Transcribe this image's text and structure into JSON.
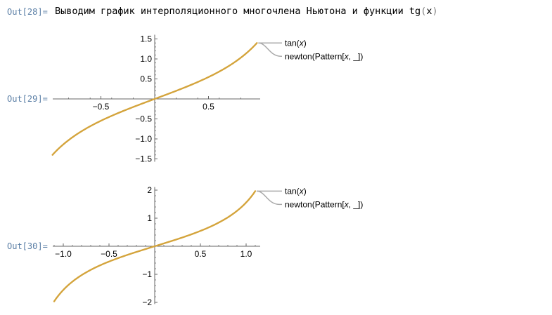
{
  "out28": {
    "label": "Out[28]=",
    "text": "Выводим график интерполяционного многочлена Ньютона и функции ",
    "func": "tg",
    "open": "(",
    "arg": "x",
    "close": ")"
  },
  "out29": {
    "label": "Out[29]="
  },
  "out30": {
    "label": "Out[30]="
  },
  "colors": {
    "curve": "#d4a43c",
    "leader": "#aaaaaa",
    "label": "#5b7fa6"
  },
  "chart_data": [
    {
      "type": "line",
      "function": "tan",
      "xlim": [
        -0.95,
        0.95
      ],
      "ylim": [
        -1.5,
        1.5
      ],
      "xticks": [
        {
          "v": -0.5,
          "label": "−0.5"
        },
        {
          "v": 0.5,
          "label": "0.5"
        }
      ],
      "yticks": [
        {
          "v": -1.5,
          "label": "−1.5"
        },
        {
          "v": -1.0,
          "label": "−1.0"
        },
        {
          "v": -0.5,
          "label": "−0.5"
        },
        {
          "v": 0.5,
          "label": "0.5"
        },
        {
          "v": 1.0,
          "label": "1.0"
        },
        {
          "v": 1.5,
          "label": "1.5"
        }
      ],
      "series": [
        {
          "name": "tan(x)",
          "x": [
            -0.95,
            -0.75,
            -0.5,
            -0.25,
            0,
            0.25,
            0.5,
            0.75,
            0.95
          ],
          "y": [
            -1.4,
            -0.93,
            -0.55,
            -0.26,
            0,
            0.26,
            0.55,
            0.93,
            1.4
          ]
        },
        {
          "name": "newton(Pattern[x, _])",
          "x": [
            -0.95,
            -0.75,
            -0.5,
            -0.25,
            0,
            0.25,
            0.5,
            0.75,
            0.95
          ],
          "y": [
            -1.4,
            -0.93,
            -0.55,
            -0.26,
            0,
            0.26,
            0.55,
            0.93,
            1.4
          ]
        }
      ],
      "legend": [
        {
          "prefix": "tan(",
          "italic": "x",
          "suffix": ")"
        },
        {
          "prefix": "newton(Pattern[",
          "italic": "x",
          "suffix": ", _])"
        }
      ]
    },
    {
      "type": "line",
      "function": "tan",
      "xlim": [
        -1.1,
        1.1
      ],
      "ylim": [
        -1.96,
        1.96
      ],
      "xticks": [
        {
          "v": -1.0,
          "label": "−1.0"
        },
        {
          "v": -0.5,
          "label": "−0.5"
        },
        {
          "v": 0.5,
          "label": "0.5"
        },
        {
          "v": 1.0,
          "label": "1.0"
        }
      ],
      "yticks": [
        {
          "v": -2,
          "label": "−2"
        },
        {
          "v": -1,
          "label": "−1"
        },
        {
          "v": 1,
          "label": "1"
        },
        {
          "v": 2,
          "label": "2"
        }
      ],
      "series": [
        {
          "name": "tan(x)",
          "x": [
            -1.1,
            -0.8,
            -0.5,
            -0.25,
            0,
            0.25,
            0.5,
            0.8,
            1.1
          ],
          "y": [
            -1.96,
            -1.03,
            -0.55,
            -0.26,
            0,
            0.26,
            0.55,
            1.03,
            1.96
          ]
        },
        {
          "name": "newton(Pattern[x, _])",
          "x": [
            -1.1,
            -0.8,
            -0.5,
            -0.25,
            0,
            0.25,
            0.5,
            0.8,
            1.1
          ],
          "y": [
            -1.96,
            -1.03,
            -0.55,
            -0.26,
            0,
            0.26,
            0.55,
            1.03,
            1.96
          ]
        }
      ],
      "legend": [
        {
          "prefix": "tan(",
          "italic": "x",
          "suffix": ")"
        },
        {
          "prefix": "newton(Pattern[",
          "italic": "x",
          "suffix": ", _])"
        }
      ]
    }
  ]
}
